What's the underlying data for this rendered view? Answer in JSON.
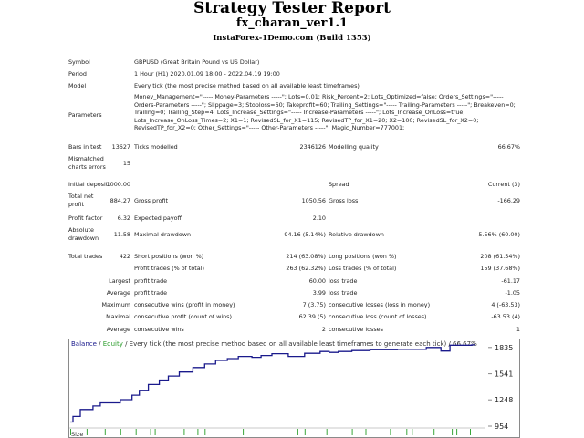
{
  "header": {
    "title": "Strategy Tester Report",
    "ea_name": "fx_charan_ver1.1",
    "server": "InstaForex-1Demo.com (Build 1353)"
  },
  "info": {
    "symbol_label": "Symbol",
    "symbol_value": "GBPUSD (Great Britain Pound vs US Dollar)",
    "period_label": "Period",
    "period_value": "1 Hour (H1) 2020.01.09 18:00 - 2022.04.19 19:00",
    "model_label": "Model",
    "model_value": "Every tick (the most precise method based on all available least timeframes)",
    "parameters_label": "Parameters",
    "parameters_value": "Money_Management=\"----- Money-Parameters -----\"; Lots=0.01; Risk_Percent=2; Lots_Optimized=false; Orders_Settings=\"----- Orders-Parameters -----\"; Slippage=3; Stoploss=60; Takeprofit=60; Trailing_Settings=\"----- Trailing-Parameters -----\"; Breakeven=0; Trailing=0; Trailing_Step=4; Lots_Increase_Settings=\"----- Increase-Parameters -----\"; Lots_Increase_OnLoss=true; Lots_Increase_OnLoss_Times=2; X1=1; RevisedSL_for_X1=115; RevisedTP_for_X1=20; X2=100; RevisedSL_for_X2=0; RevisedTP_for_X2=0; Other_Settings=\"----- Other-Parameters -----\"; Magic_Number=777001;"
  },
  "quality": {
    "bars_label": "Bars in test",
    "bars_value": "13627",
    "ticks_label": "Ticks modelled",
    "ticks_value": "2346126",
    "mq_label": "Modelling quality",
    "mq_value": "66.67%",
    "mismatch_label_1": "Mismatched",
    "mismatch_label_2": "charts errors",
    "mismatch_value": "15"
  },
  "stats": {
    "initial_deposit_label": "Initial deposit",
    "initial_deposit_value": "1000.00",
    "spread_label": "Spread",
    "spread_value": "Current (3)",
    "net_profit_label_1": "Total net",
    "net_profit_label_2": "profit",
    "net_profit_value": "884.27",
    "gross_profit_label": "Gross profit",
    "gross_profit_value": "1050.56",
    "gross_loss_label": "Gross loss",
    "gross_loss_value": "-166.29",
    "profit_factor_label": "Profit factor",
    "profit_factor_value": "6.32",
    "expected_payoff_label": "Expected payoff",
    "expected_payoff_value": "2.10",
    "abs_dd_label_1": "Absolute",
    "abs_dd_label_2": "drawdown",
    "abs_dd_value": "11.58",
    "max_dd_label": "Maximal drawdown",
    "max_dd_value": "94.16 (5.14%)",
    "rel_dd_label": "Relative drawdown",
    "rel_dd_value": "5.56% (60.00)",
    "total_trades_label": "Total trades",
    "total_trades_value": "422",
    "short_label": "Short positions (won %)",
    "short_value": "214 (63.08%)",
    "long_label": "Long positions (won %)",
    "long_value": "208 (61.54%)",
    "profit_trades_label": "Profit trades (% of total)",
    "profit_trades_value": "263 (62.32%)",
    "loss_trades_label": "Loss trades (% of total)",
    "loss_trades_value": "159 (37.68%)",
    "largest_label": "Largest",
    "largest_pt_label": "profit trade",
    "largest_pt_value": "60.00",
    "largest_lt_label": "loss trade",
    "largest_lt_value": "-61.17",
    "average_label": "Average",
    "average_pt_label": "profit trade",
    "average_pt_value": "3.99",
    "average_lt_label": "loss trade",
    "average_lt_value": "-1.05",
    "maximum_label": "Maximum",
    "max_cw_label": "consecutive wins (profit in money)",
    "max_cw_value": "7 (3.75)",
    "max_cl_label": "consecutive losses (loss in money)",
    "max_cl_value": "4 (-63.53)",
    "maximal_label": "Maximal",
    "maximal_cp_label": "consecutive profit (count of wins)",
    "maximal_cp_value": "62.39 (5)",
    "maximal_cl_label": "consecutive loss (count of losses)",
    "maximal_cl_value": "-63.53 (4)",
    "average2_label": "Average",
    "avg_cw_label": "consecutive wins",
    "avg_cw_value": "2",
    "avg_cl_label": "consecutive losses",
    "avg_cl_value": "1"
  },
  "chart_legend": {
    "balance": "Balance",
    "sep1": " / ",
    "equity": "Equity",
    "rest": " / Every tick (the most precise method based on all available least timeframes to generate each tick) / 66.67%",
    "size_label": "Size"
  },
  "chart_data": {
    "type": "line",
    "title": "Balance / Equity / Every tick (the most precise method based on all available least timeframes to generate each tick) / 66.67%",
    "xlabel": "",
    "ylabel": "",
    "ylim": [
      954,
      1884
    ],
    "y_ticks": [
      1835,
      1541,
      1248,
      954
    ],
    "series": [
      {
        "name": "Balance",
        "color": "#1a1a8c",
        "x": [
          0,
          3,
          3,
          11,
          11,
          25,
          25,
          33,
          33,
          55,
          55,
          68,
          68,
          76,
          76,
          86,
          86,
          98,
          98,
          108,
          108,
          120,
          120,
          135,
          135,
          148,
          148,
          160,
          160,
          173,
          173,
          185,
          185,
          200,
          200,
          210,
          210,
          222,
          222,
          240,
          240,
          258,
          258,
          275,
          275,
          285,
          285,
          295,
          295,
          310,
          310,
          330,
          330,
          360,
          360,
          392,
          392,
          408,
          408,
          418,
          418,
          442,
          442,
          446
        ],
        "values": [
          1000,
          1000,
          1062,
          1062,
          1140,
          1140,
          1180,
          1180,
          1215,
          1215,
          1250,
          1250,
          1300,
          1300,
          1355,
          1355,
          1420,
          1420,
          1470,
          1470,
          1515,
          1515,
          1560,
          1560,
          1610,
          1610,
          1650,
          1650,
          1690,
          1690,
          1710,
          1710,
          1735,
          1735,
          1725,
          1725,
          1745,
          1745,
          1765,
          1765,
          1735,
          1735,
          1770,
          1770,
          1790,
          1790,
          1780,
          1780,
          1790,
          1790,
          1800,
          1800,
          1810,
          1810,
          1815,
          1815,
          1835,
          1835,
          1795,
          1795,
          1860,
          1860,
          1865,
          1865
        ]
      }
    ],
    "size_bars_x": [
      0,
      18,
      38,
      55,
      72,
      88,
      93,
      125,
      140,
      148,
      190,
      215,
      250,
      258,
      282,
      310,
      325,
      352,
      370,
      376,
      400,
      420,
      425,
      440
    ]
  }
}
